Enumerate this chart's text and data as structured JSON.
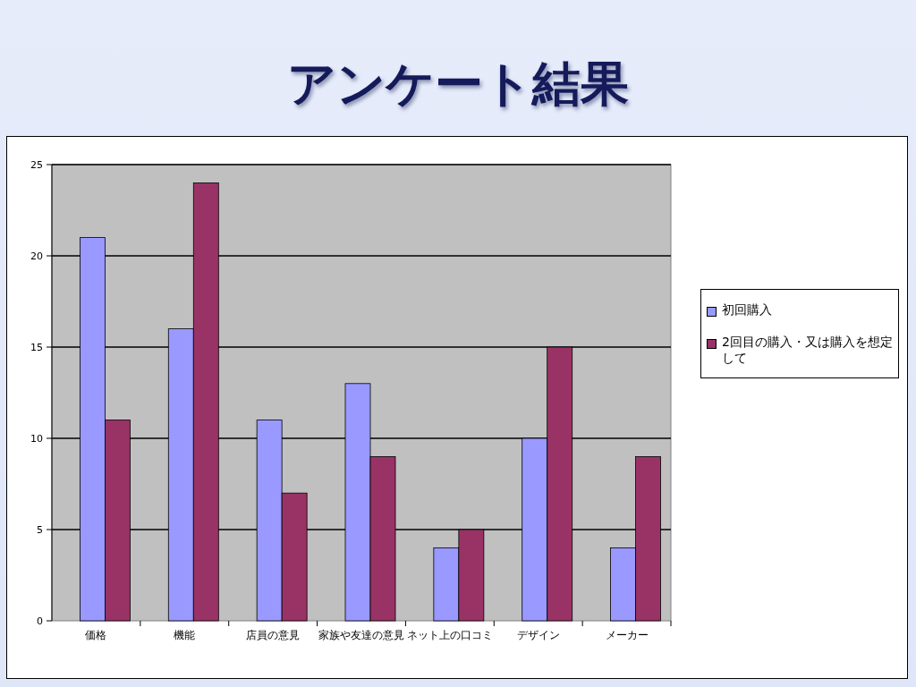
{
  "chart_data": {
    "type": "bar",
    "title": "アンケート結果",
    "categories": [
      "価格",
      "機能",
      "店員の意見",
      "家族や友達の意見",
      "ネット上の口コミ",
      "デザイン",
      "メーカー"
    ],
    "series": [
      {
        "name": "初回購入",
        "color": "#9999ff",
        "values": [
          21,
          16,
          11,
          13,
          4,
          10,
          4
        ]
      },
      {
        "name": "2回目の購入・又は購入を想定して",
        "color": "#993366",
        "values": [
          11,
          24,
          7,
          9,
          5,
          15,
          9
        ]
      }
    ],
    "ylim": [
      0,
      25
    ],
    "yticks": [
      0,
      5,
      10,
      15,
      20,
      25
    ],
    "grid": "y",
    "legend": "right"
  }
}
